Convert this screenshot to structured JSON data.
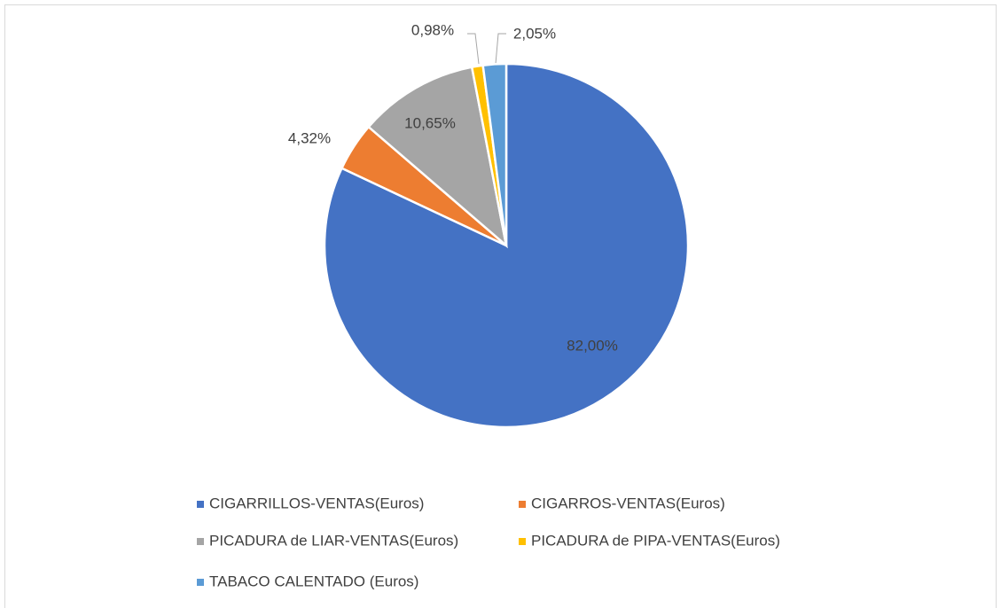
{
  "chart_data": {
    "type": "pie",
    "categories": [
      "CIGARRILLOS-VENTAS(Euros)",
      "CIGARROS-VENTAS(Euros)",
      "PICADURA de LIAR-VENTAS(Euros)",
      "PICADURA de PIPA-VENTAS(Euros)",
      "TABACO CALENTADO (Euros)"
    ],
    "values": [
      82.0,
      4.32,
      10.65,
      0.98,
      2.05
    ],
    "value_labels": [
      "82,00%",
      "4,32%",
      "10,65%",
      "0,98%",
      "2,05%"
    ],
    "colors": [
      "#4472c4",
      "#ed7d31",
      "#a5a5a5",
      "#ffc000",
      "#5b9bd5"
    ]
  }
}
